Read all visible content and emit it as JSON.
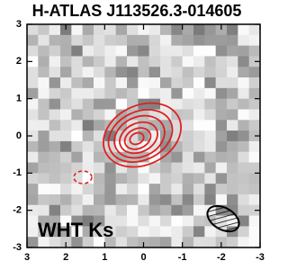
{
  "chart_data": {
    "type": "image",
    "title": "H-ATLAS J113526.3-014605",
    "annotation": "WHT Ks",
    "xlim": [
      3,
      -3
    ],
    "ylim": [
      -3,
      3
    ],
    "xticks": [
      3,
      2,
      1,
      0,
      -1,
      -2,
      -3
    ],
    "yticks": [
      -3,
      -2,
      -1,
      0,
      1,
      2,
      3
    ],
    "contour_color": "#e02020"
  }
}
